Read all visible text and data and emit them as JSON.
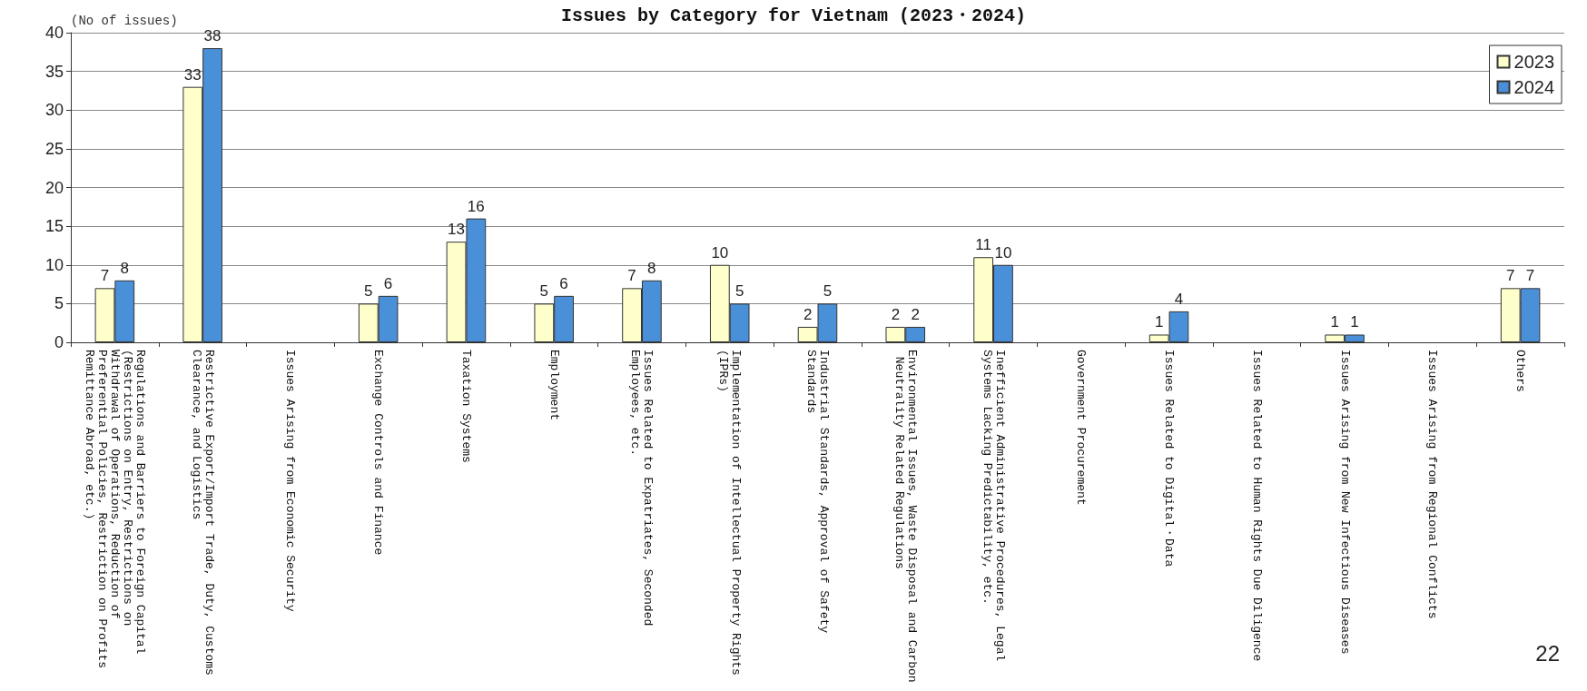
{
  "chart_data": {
    "type": "bar",
    "title": "Issues by Category for Vietnam (2023・2024)",
    "ylabel": "(No of issues)",
    "categories": [
      "Regulations and Barriers to Foreign Capital (Restrictions on Entry, Restrictions on Withdrawal of Operations, Reduction of Preferential Policies, Restriction on Profits Remittance Abroad, etc.)",
      "Restrictive Export/Import Trade, Duty, Customs Clearance, and Logistics",
      "Issues Arising from Economic Security",
      "Exchange Controls and Finance",
      "Taxation Systems",
      "Employment",
      "Issues Related to Expatriates, Seconded Employees, etc.",
      "Implementation of Intellectual Property Rights (IPRs)",
      "Industrial Standards, Approval of Safety Standards",
      "Environmental Issues, Waste Disposal and Carbon Neutrality Related Regulations",
      "Inefficient Administrative Procedures, Legal Systems Lacking Predictability, etc.",
      "Government Procurement",
      "Issues Related to Digital・Data",
      "Issues Related to Human Rights Due Diligence",
      "Issues Arising from New Infectious Diseases",
      "Issues Arising from Regional Conflicts",
      "Others"
    ],
    "series": [
      {
        "name": "2023",
        "color": "#ffffcc",
        "values": [
          7,
          33,
          null,
          5,
          13,
          5,
          7,
          10,
          2,
          2,
          11,
          null,
          1,
          null,
          1,
          null,
          7
        ]
      },
      {
        "name": "2024",
        "color": "#4a90d9",
        "values": [
          8,
          38,
          null,
          6,
          16,
          6,
          8,
          5,
          5,
          2,
          10,
          null,
          4,
          null,
          1,
          null,
          7
        ]
      }
    ],
    "ylim": [
      0,
      40
    ],
    "yticks": [
      0,
      5,
      10,
      15,
      20,
      25,
      30,
      35,
      40
    ],
    "grid": "y",
    "legend": "top right",
    "data_labels": true,
    "annotations": [
      "22"
    ]
  }
}
